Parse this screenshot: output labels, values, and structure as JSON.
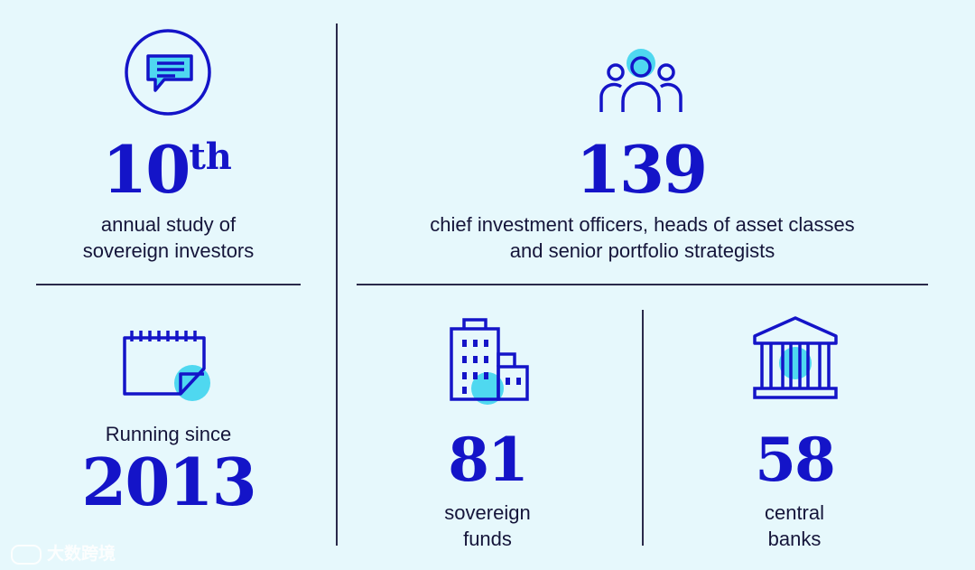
{
  "stats": {
    "study": {
      "number": "10",
      "suffix": "th",
      "line1": "annual study of",
      "line2": "sovereign investors"
    },
    "since": {
      "label": "Running since",
      "year": "2013"
    },
    "participants": {
      "number": "139",
      "line1": "chief investment officers, heads of asset classes",
      "line2": "and senior portfolio strategists"
    },
    "funds": {
      "number": "81",
      "line1": "sovereign",
      "line2": "funds"
    },
    "banks": {
      "number": "58",
      "line1": "central",
      "line2": "banks"
    }
  },
  "watermark": {
    "text": "大数跨境"
  },
  "colors": {
    "accent": "#1414c8",
    "highlight": "#4fd8f0",
    "background": "#e6f8fc",
    "text": "#15153a"
  },
  "icons": [
    "chat-bubble-icon",
    "people-group-icon",
    "calendar-icon",
    "office-building-icon",
    "bank-building-icon"
  ]
}
